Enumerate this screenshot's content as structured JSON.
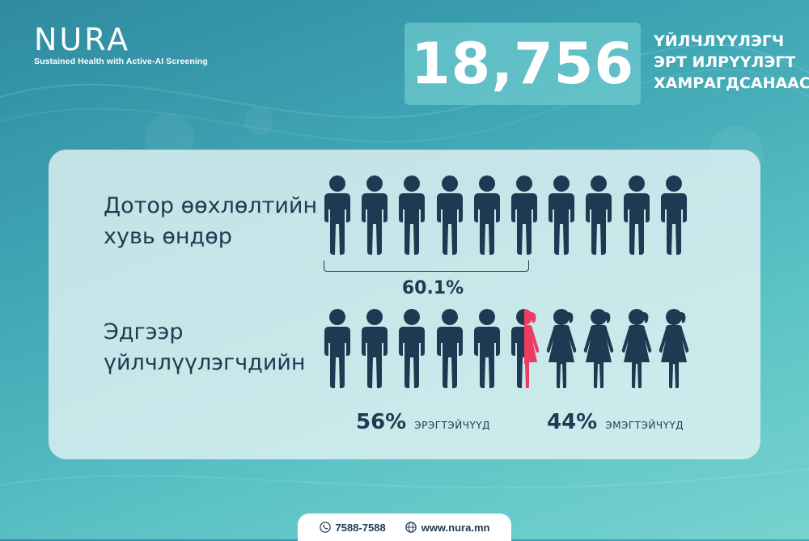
{
  "brand": {
    "logo_text": "NURA",
    "tagline": "Sustained Health with Active-AI Screening"
  },
  "headline_stat": {
    "value": "18,756",
    "caption_lines": [
      "ҮЙЛЧЛҮҮЛЭГЧ",
      "ЭРТ ИЛРҮҮЛЭГТ",
      "ХАМРАГДСАНААС"
    ]
  },
  "row_obesity": {
    "label_lines": [
      "Дотор өөхлөлтийн",
      "хувь өндөр"
    ],
    "percent_text": "60.1%",
    "percent_value": 60.1,
    "people_total": 10,
    "people_highlighted": 6
  },
  "row_gender": {
    "label_lines": [
      "Эдгээр",
      "үйлчлүүлэгчдийн"
    ],
    "male": {
      "percent_text": "56%",
      "label": "ЭРЭГТЭЙЧҮҮД",
      "percent_value": 56
    },
    "female": {
      "percent_text": "44%",
      "label": "ЭМЭГТЭЙЧҮҮД",
      "percent_value": 44
    },
    "people_total": 10
  },
  "footer": {
    "phone": "7588-7588",
    "website": "www.nura.mn",
    "phone_icon": "phone-icon",
    "web_icon": "globe-icon"
  },
  "colors": {
    "male_figure": "#1e3a52",
    "female_figure": "#ee3b61",
    "text_dark": "#1e3a52",
    "background_teal": "#3fa6b4"
  }
}
